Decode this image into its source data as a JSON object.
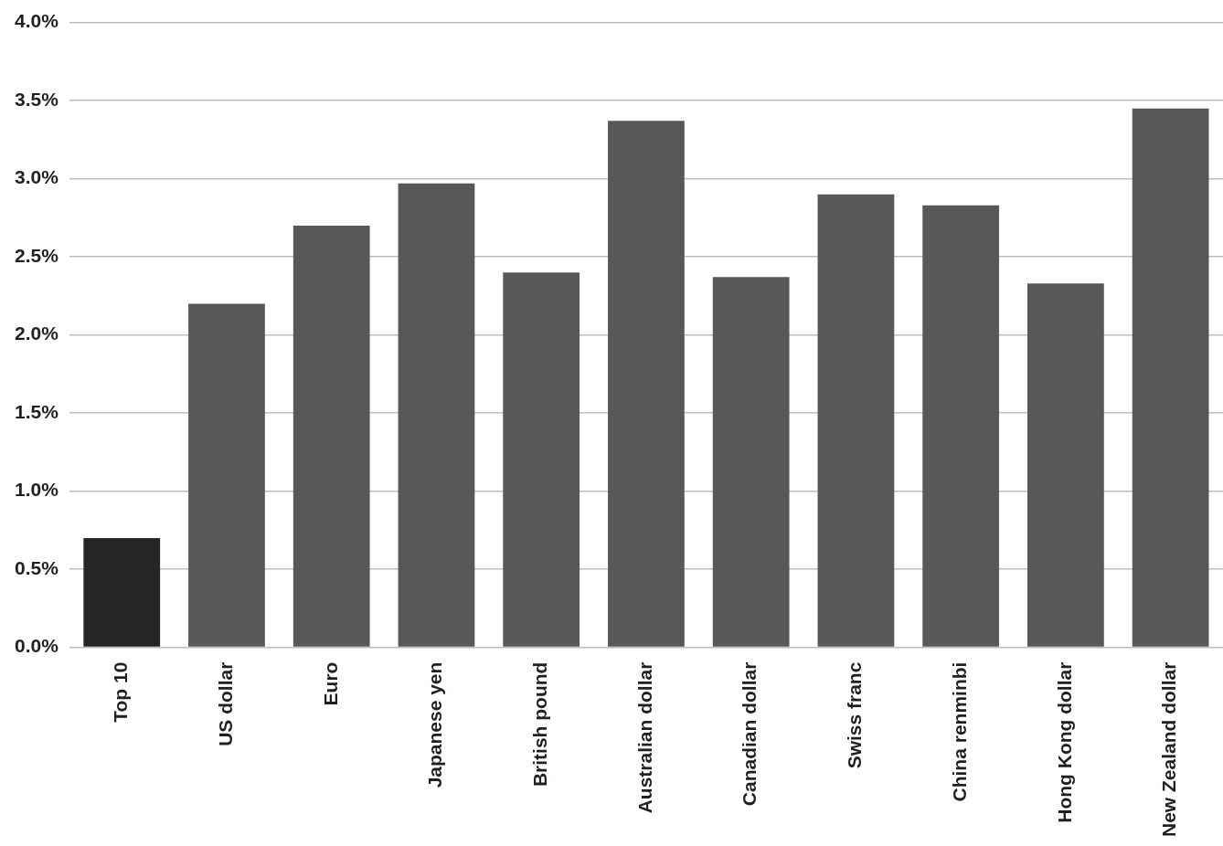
{
  "chart_data": {
    "type": "bar",
    "categories": [
      "Top 10",
      "US dollar",
      "Euro",
      "Japanese yen",
      "British pound",
      "Australian dollar",
      "Canadian dollar",
      "Swiss franc",
      "China renminbi",
      "Hong Kong dollar",
      "New Zealand dollar"
    ],
    "values": [
      0.7,
      2.2,
      2.7,
      2.97,
      2.4,
      3.37,
      2.37,
      2.9,
      2.83,
      2.33,
      3.45
    ],
    "colors": [
      "#272425",
      "#58585a",
      "#58585a",
      "#58585a",
      "#58585a",
      "#58585a",
      "#58585a",
      "#58585a",
      "#58585a",
      "#58585a",
      "#58585a"
    ],
    "ylim": [
      0,
      4
    ],
    "yticks": [
      {
        "value": 0,
        "label": "0.0%"
      },
      {
        "value": 0.5,
        "label": "0.5%"
      },
      {
        "value": 1,
        "label": "1.0%"
      },
      {
        "value": 1.5,
        "label": "1.5%"
      },
      {
        "value": 2,
        "label": "2.0%"
      },
      {
        "value": 2.5,
        "label": "2.5%"
      },
      {
        "value": 3,
        "label": "3.0%"
      },
      {
        "value": 3.5,
        "label": "3.5%"
      },
      {
        "value": 4,
        "label": "4.0%"
      }
    ],
    "grid": true
  }
}
